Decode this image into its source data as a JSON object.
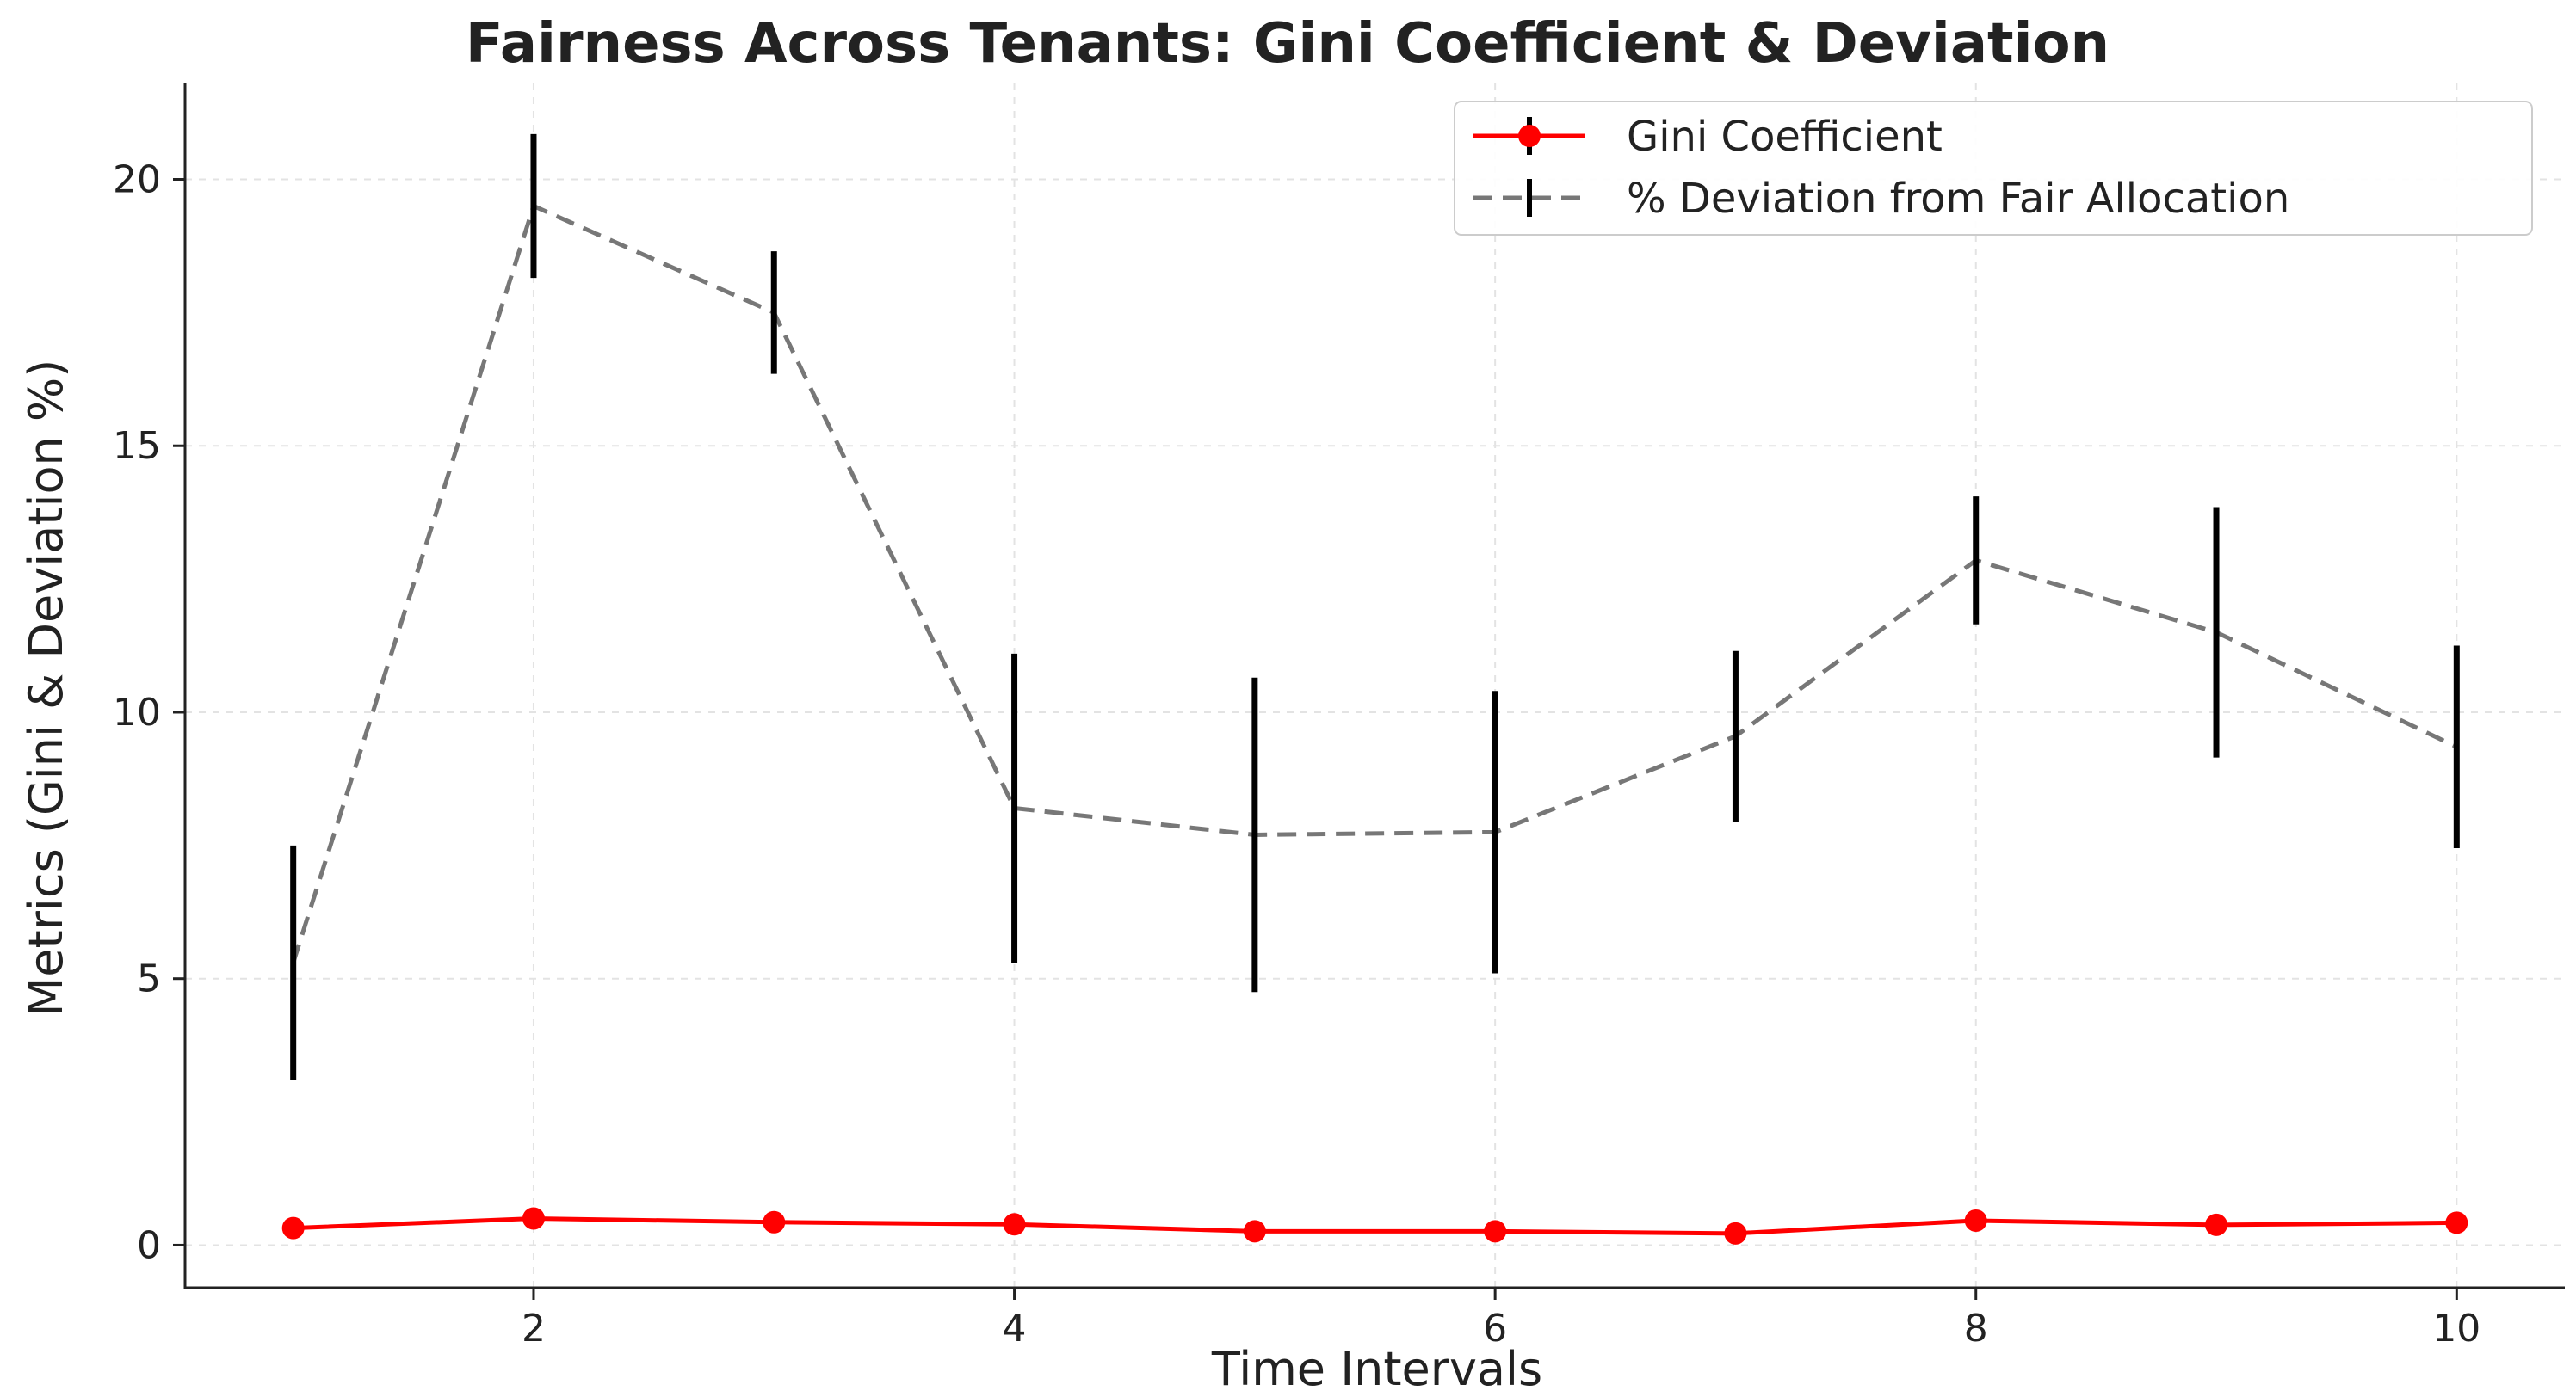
{
  "chart_data": {
    "type": "line",
    "title": "Fairness Across Tenants: Gini Coefficient & Deviation",
    "xlabel": "Time Intervals",
    "ylabel": "Metrics (Gini & Deviation %)",
    "x": [
      1,
      2,
      3,
      4,
      5,
      6,
      7,
      8,
      9,
      10
    ],
    "xlim": [
      0.55,
      10.45
    ],
    "ylim": [
      -0.8,
      21.8
    ],
    "xticks": [
      2,
      4,
      6,
      8,
      10
    ],
    "yticks": [
      0,
      5,
      10,
      15,
      20
    ],
    "grid": true,
    "legend_position": "top-right",
    "series": [
      {
        "name": "Gini Coefficient",
        "color": "#ff0000",
        "style": "solid-markers",
        "values": [
          0.32,
          0.5,
          0.43,
          0.39,
          0.26,
          0.26,
          0.22,
          0.46,
          0.38,
          0.42
        ]
      },
      {
        "name": "% Deviation from Fair Allocation",
        "color": "#777777",
        "style": "dashed-errorbars",
        "errorbar_color": "#000000",
        "values": [
          5.3,
          19.5,
          17.5,
          8.2,
          7.7,
          7.75,
          9.55,
          12.85,
          11.5,
          9.35
        ],
        "error": [
          2.2,
          1.35,
          1.15,
          2.9,
          2.95,
          2.65,
          1.6,
          1.2,
          2.35,
          1.9
        ]
      }
    ]
  }
}
